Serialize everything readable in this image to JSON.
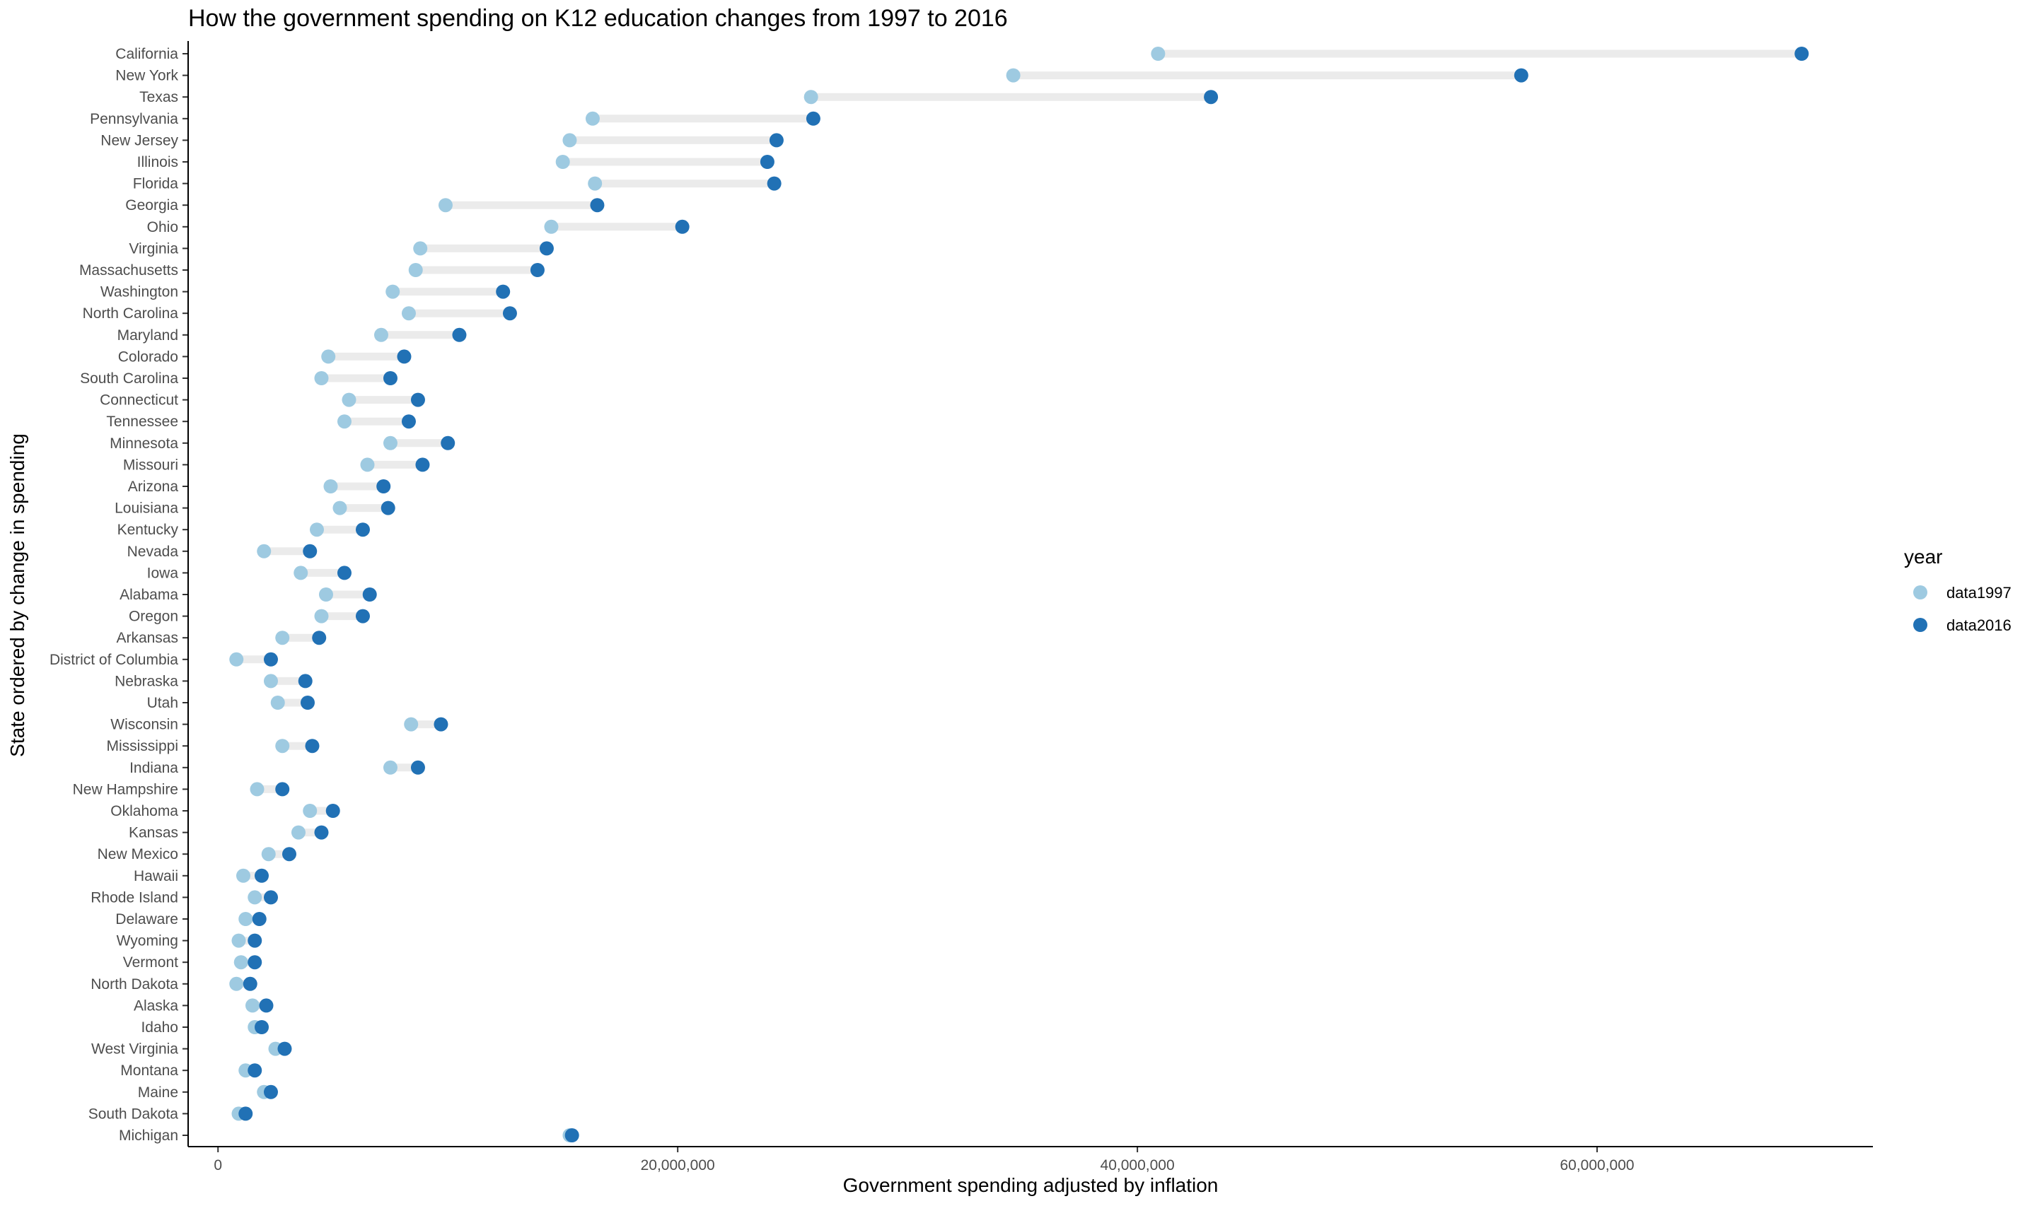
{
  "chart_data": {
    "type": "dumbbell",
    "title": "How the government spending on K12 education changes from 1997 to 2016",
    "xlabel": "Government spending adjusted by inflation",
    "ylabel": "State ordered by change in spending",
    "xlim": [
      -1300000,
      72000000
    ],
    "x_ticks": [
      0,
      20000000,
      40000000,
      60000000
    ],
    "x_tick_labels": [
      "0",
      "20,000,000",
      "40,000,000",
      "60,000,000"
    ],
    "grid": false,
    "legend": {
      "title": "year",
      "position": "right"
    },
    "series": [
      {
        "name": "data1997",
        "color": "#9ecae1"
      },
      {
        "name": "data2016",
        "color": "#2171b5"
      }
    ],
    "segment_color": "#ebebeb",
    "categories": [
      "California",
      "New York",
      "Texas",
      "Pennsylvania",
      "New Jersey",
      "Illinois",
      "Florida",
      "Georgia",
      "Ohio",
      "Virginia",
      "Massachusetts",
      "Washington",
      "North Carolina",
      "Maryland",
      "Colorado",
      "South Carolina",
      "Connecticut",
      "Tennessee",
      "Minnesota",
      "Missouri",
      "Arizona",
      "Louisiana",
      "Kentucky",
      "Nevada",
      "Iowa",
      "Alabama",
      "Oregon",
      "Arkansas",
      "District of Columbia",
      "Nebraska",
      "Utah",
      "Wisconsin",
      "Mississippi",
      "Indiana",
      "New Hampshire",
      "Oklahoma",
      "Kansas",
      "New Mexico",
      "Hawaii",
      "Rhode Island",
      "Delaware",
      "Wyoming",
      "Vermont",
      "North Dakota",
      "Alaska",
      "Idaho",
      "West Virginia",
      "Montana",
      "Maine",
      "South Dakota",
      "Michigan"
    ],
    "data1997": [
      40900000,
      34600000,
      25800000,
      16300000,
      15300000,
      15000000,
      16400000,
      9900000,
      14500000,
      8800000,
      8600000,
      7600000,
      8300000,
      7100000,
      4800000,
      4500000,
      5700000,
      5500000,
      7500000,
      6500000,
      4900000,
      5300000,
      4300000,
      2000000,
      3600000,
      4700000,
      4500000,
      2800000,
      800000,
      2300000,
      2600000,
      8400000,
      2800000,
      7500000,
      1700000,
      4000000,
      3500000,
      2200000,
      1100000,
      1600000,
      1200000,
      900000,
      1000000,
      800000,
      1500000,
      1600000,
      2500000,
      1200000,
      2000000,
      900000,
      15300000
    ],
    "data2016": [
      68900000,
      56700000,
      43200000,
      25900000,
      24300000,
      23900000,
      24200000,
      16500000,
      20200000,
      14300000,
      13900000,
      12400000,
      12700000,
      10500000,
      8100000,
      7500000,
      8700000,
      8300000,
      10000000,
      8900000,
      7200000,
      7400000,
      6300000,
      4000000,
      5500000,
      6600000,
      6300000,
      4400000,
      2300000,
      3800000,
      3900000,
      9700000,
      4100000,
      8700000,
      2800000,
      5000000,
      4500000,
      3100000,
      1900000,
      2300000,
      1800000,
      1600000,
      1600000,
      1400000,
      2100000,
      1900000,
      2900000,
      1600000,
      2300000,
      1200000,
      15400000
    ]
  }
}
